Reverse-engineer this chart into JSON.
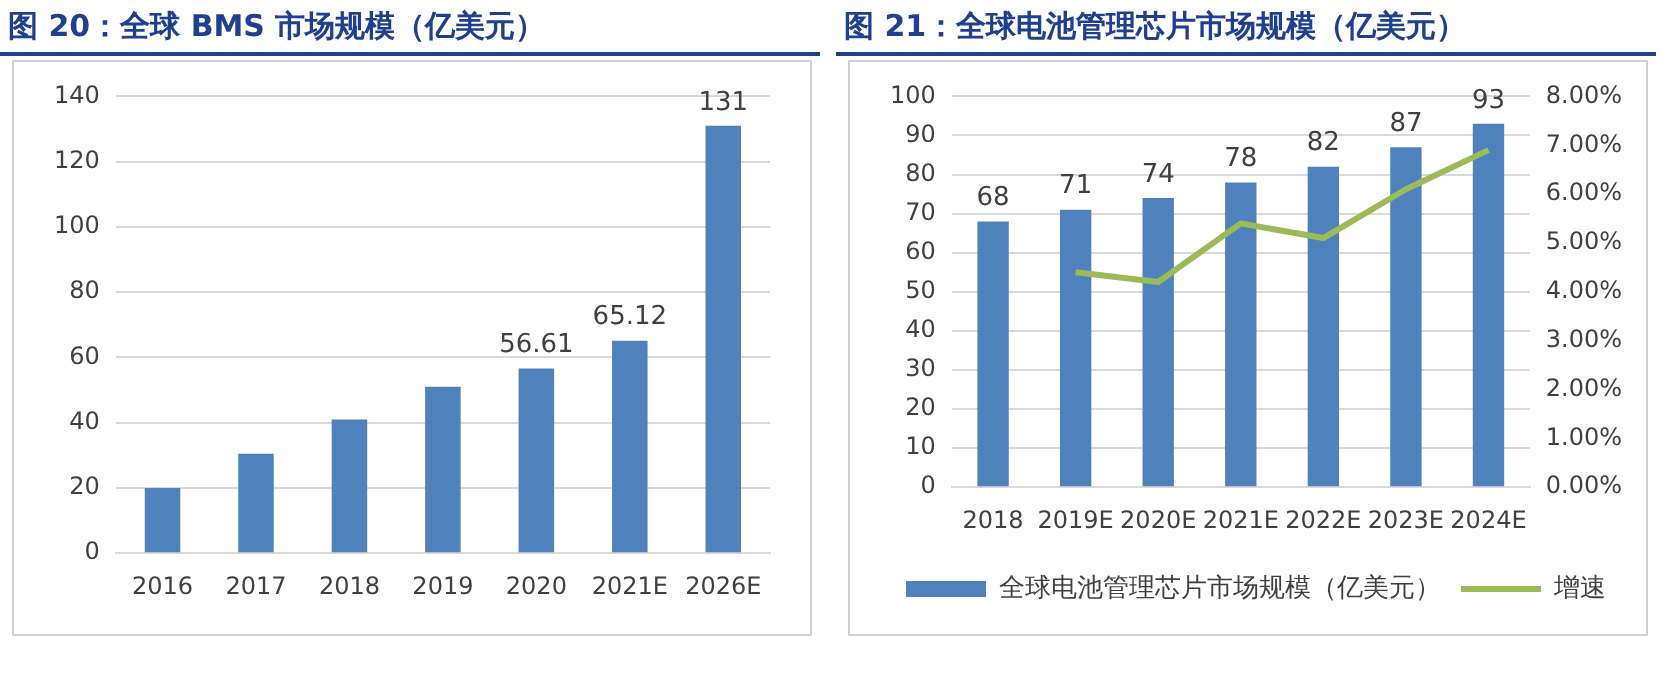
{
  "chart_data": [
    {
      "type": "bar",
      "title": "图 20：全球 BMS 市场规模（亿美元）",
      "categories": [
        "2016",
        "2017",
        "2018",
        "2019",
        "2020",
        "2021E",
        "2026E"
      ],
      "values": [
        20,
        30.5,
        41,
        51,
        56.61,
        65.12,
        131
      ],
      "value_labels": [
        null,
        null,
        null,
        null,
        "56.61",
        "65.12",
        "131"
      ],
      "color": "#4f81bd",
      "ylim": [
        0,
        140
      ],
      "yticks": [
        0,
        20,
        40,
        60,
        80,
        100,
        120,
        140
      ],
      "grid": "y"
    },
    {
      "type": "bar",
      "title": "图 21：全球电池管理芯片市场规模（亿美元）",
      "categories": [
        "2018",
        "2019E",
        "2020E",
        "2021E",
        "2022E",
        "2023E",
        "2024E"
      ],
      "series": [
        {
          "name": "全球电池管理芯片市场规模（亿美元）",
          "type": "bar",
          "color": "#4f81bd",
          "values": [
            68,
            71,
            74,
            78,
            82,
            87,
            93
          ],
          "value_labels": [
            "68",
            "71",
            "74",
            "78",
            "82",
            "87",
            "93"
          ]
        },
        {
          "name": "增速",
          "type": "line",
          "axis": "y2",
          "color": "#9bbb59",
          "values": [
            null,
            4.4,
            4.2,
            5.4,
            5.1,
            6.1,
            6.9
          ]
        }
      ],
      "ylim": [
        0,
        100
      ],
      "yticks": [
        0,
        10,
        20,
        30,
        40,
        50,
        60,
        70,
        80,
        90,
        100
      ],
      "y2lim": [
        0,
        8
      ],
      "y2ticks": [
        {
          "value": 0,
          "label": "0.00%"
        },
        {
          "value": 1,
          "label": "1.00%"
        },
        {
          "value": 2,
          "label": "2.00%"
        },
        {
          "value": 3,
          "label": "3.00%"
        },
        {
          "value": 4,
          "label": "4.00%"
        },
        {
          "value": 5,
          "label": "5.00%"
        },
        {
          "value": 6,
          "label": "6.00%"
        },
        {
          "value": 7,
          "label": "7.00%"
        },
        {
          "value": 8,
          "label": "8.00%"
        }
      ],
      "grid": "y",
      "legend": "bottom",
      "marker": "none"
    }
  ]
}
